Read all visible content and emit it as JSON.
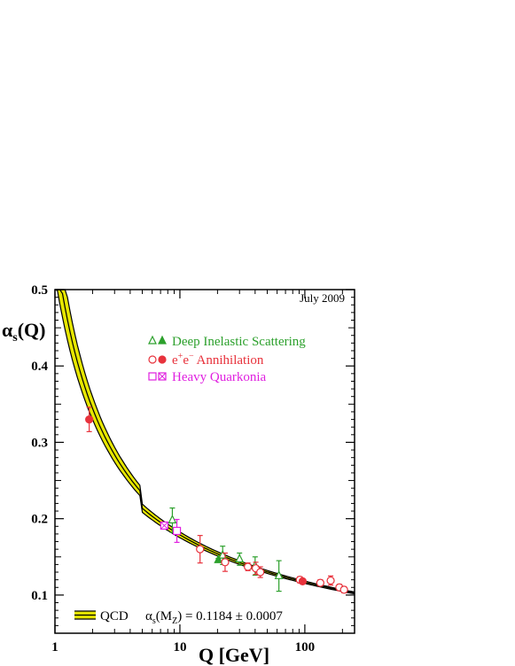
{
  "chart_data": {
    "type": "scatter",
    "title": "",
    "annotation": "July 2009",
    "xlabel": "Q [GeV]",
    "ylabel_main": "α",
    "ylabel_sub": "s",
    "ylabel_tail": "(Q)",
    "xscale": "log",
    "xlim": [
      1,
      250
    ],
    "ylim": [
      0.05,
      0.5
    ],
    "x_ticks": [
      {
        "v": 1,
        "label": "1"
      },
      {
        "v": 10,
        "label": "10"
      },
      {
        "v": 100,
        "label": "100"
      }
    ],
    "y_ticks": [
      {
        "v": 0.1,
        "label": "0.1"
      },
      {
        "v": 0.2,
        "label": "0.2"
      },
      {
        "v": 0.3,
        "label": "0.3"
      },
      {
        "v": 0.4,
        "label": "0.4"
      },
      {
        "v": 0.5,
        "label": "0.5"
      }
    ],
    "legend_position": "top-center",
    "legend": [
      {
        "key": "dis",
        "label": "Deep Inelastic Scattering",
        "color": "#2ca02c",
        "symbols": [
          "triangle-open",
          "triangle-filled"
        ]
      },
      {
        "key": "ee",
        "label_prefix": "e",
        "label_sup1": "+",
        "label_mid": "e",
        "label_sup2": "−",
        "label_suffix": " Annihilation",
        "color": "#e8323c",
        "symbols": [
          "circle-open",
          "circle-filled"
        ]
      },
      {
        "key": "hq",
        "label": "Heavy Quarkonia",
        "color": "#e020e0",
        "symbols": [
          "square-open",
          "square-crossed"
        ]
      }
    ],
    "band_legend_label": "QCD",
    "fit_label_main": "α",
    "fit_label_sub": "s",
    "fit_label_mz": "(M",
    "fit_label_mz_sub": "Z",
    "fit_label_value": ") = 0.1184 ± 0.0007",
    "alpha_mz": 0.1184,
    "band_color": "#e6e600",
    "series": [
      {
        "name": "Deep Inelastic Scattering",
        "color": "#2ca02c",
        "points": [
          {
            "x": 8.7,
            "y": 0.198,
            "err": 0.016,
            "marker": "triangle-open"
          },
          {
            "x": 20.3,
            "y": 0.146,
            "err": 0.002,
            "marker": "triangle-filled"
          },
          {
            "x": 22.0,
            "y": 0.152,
            "err": 0.012,
            "marker": "triangle-open"
          },
          {
            "x": 30.0,
            "y": 0.147,
            "err": 0.008,
            "marker": "triangle-open"
          },
          {
            "x": 40.0,
            "y": 0.138,
            "err": 0.012,
            "marker": "triangle-open"
          },
          {
            "x": 62.0,
            "y": 0.125,
            "err": 0.02,
            "marker": "triangle-open"
          }
        ]
      },
      {
        "name": "e+e− Annihilation",
        "color": "#e8323c",
        "points": [
          {
            "x": 1.88,
            "y": 0.33,
            "err": 0.016,
            "marker": "circle-filled"
          },
          {
            "x": 14.5,
            "y": 0.16,
            "err": 0.018,
            "marker": "circle-open"
          },
          {
            "x": 23.0,
            "y": 0.143,
            "err": 0.012,
            "marker": "circle-open"
          },
          {
            "x": 35.0,
            "y": 0.137,
            "err": 0.005,
            "marker": "circle-open"
          },
          {
            "x": 40.5,
            "y": 0.135,
            "err": 0.008,
            "marker": "circle-open"
          },
          {
            "x": 44.0,
            "y": 0.13,
            "err": 0.007,
            "marker": "circle-open"
          },
          {
            "x": 91.2,
            "y": 0.12,
            "err": 0.004,
            "marker": "circle-open"
          },
          {
            "x": 96.0,
            "y": 0.118,
            "err": 0.002,
            "marker": "circle-filled"
          },
          {
            "x": 133.0,
            "y": 0.116,
            "err": 0.004,
            "marker": "circle-open"
          },
          {
            "x": 161.0,
            "y": 0.119,
            "err": 0.006,
            "marker": "circle-open"
          },
          {
            "x": 189.0,
            "y": 0.11,
            "err": 0.004,
            "marker": "circle-open"
          },
          {
            "x": 206.0,
            "y": 0.107,
            "err": 0.004,
            "marker": "circle-open"
          }
        ]
      },
      {
        "name": "Heavy Quarkonia",
        "color": "#e020e0",
        "points": [
          {
            "x": 7.5,
            "y": 0.191,
            "err": 0.003,
            "marker": "square-crossed"
          },
          {
            "x": 9.46,
            "y": 0.184,
            "err": 0.015,
            "marker": "square-open"
          }
        ]
      }
    ]
  }
}
